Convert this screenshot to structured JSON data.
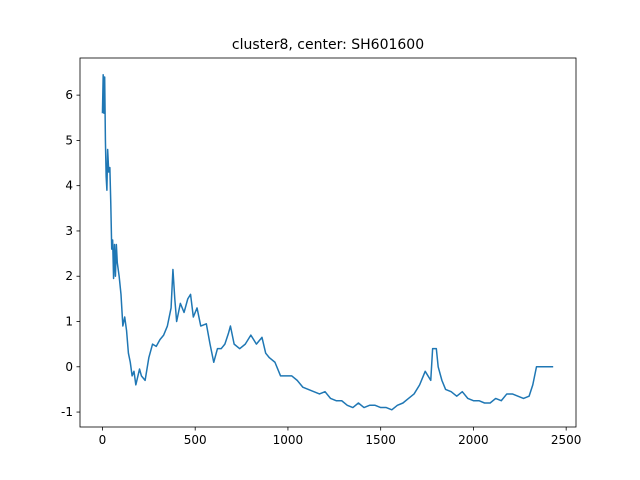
{
  "chart_data": {
    "type": "line",
    "title": "cluster8, center: SH601600",
    "series": [
      {
        "color": "#1f77b4",
        "x": [
          0,
          4,
          8,
          12,
          16,
          20,
          24,
          28,
          34,
          40,
          45,
          50,
          55,
          60,
          65,
          70,
          75,
          80,
          90,
          100,
          110,
          120,
          130,
          140,
          150,
          160,
          170,
          180,
          200,
          210,
          230,
          250,
          270,
          290,
          310,
          330,
          350,
          370,
          380,
          390,
          400,
          420,
          440,
          460,
          475,
          490,
          510,
          530,
          560,
          580,
          600,
          620,
          640,
          660,
          680,
          690,
          710,
          740,
          770,
          800,
          830,
          860,
          880,
          900,
          930,
          960,
          990,
          1020,
          1050,
          1080,
          1110,
          1140,
          1170,
          1200,
          1230,
          1260,
          1290,
          1320,
          1350,
          1380,
          1410,
          1440,
          1470,
          1500,
          1530,
          1560,
          1590,
          1620,
          1650,
          1680,
          1710,
          1740,
          1770,
          1780,
          1800,
          1810,
          1830,
          1850,
          1880,
          1910,
          1940,
          1970,
          2000,
          2030,
          2060,
          2090,
          2120,
          2150,
          2180,
          2210,
          2240,
          2270,
          2300,
          2320,
          2340,
          2360,
          2400,
          2430
        ],
        "values": [
          5.6,
          6.45,
          5.6,
          6.4,
          5.0,
          4.2,
          3.9,
          4.8,
          4.3,
          4.4,
          3.6,
          2.6,
          2.8,
          1.95,
          2.7,
          2.0,
          2.7,
          2.3,
          2.0,
          1.6,
          0.9,
          1.1,
          0.8,
          0.3,
          0.1,
          -0.2,
          -0.1,
          -0.4,
          -0.05,
          -0.2,
          -0.3,
          0.2,
          0.5,
          0.45,
          0.6,
          0.7,
          0.9,
          1.3,
          2.15,
          1.5,
          1.0,
          1.4,
          1.2,
          1.5,
          1.6,
          1.1,
          1.3,
          0.9,
          0.95,
          0.5,
          0.1,
          0.4,
          0.4,
          0.5,
          0.75,
          0.9,
          0.5,
          0.4,
          0.5,
          0.7,
          0.5,
          0.65,
          0.3,
          0.2,
          0.1,
          -0.2,
          -0.2,
          -0.2,
          -0.3,
          -0.45,
          -0.5,
          -0.55,
          -0.6,
          -0.55,
          -0.7,
          -0.75,
          -0.75,
          -0.85,
          -0.9,
          -0.8,
          -0.9,
          -0.85,
          -0.85,
          -0.9,
          -0.9,
          -0.95,
          -0.85,
          -0.8,
          -0.7,
          -0.6,
          -0.4,
          -0.1,
          -0.3,
          0.4,
          0.4,
          0.0,
          -0.3,
          -0.5,
          -0.55,
          -0.65,
          -0.55,
          -0.7,
          -0.75,
          -0.75,
          -0.8,
          -0.8,
          -0.7,
          -0.75,
          -0.6,
          -0.6,
          -0.65,
          -0.7,
          -0.65,
          -0.4,
          0.0,
          0.0,
          0.0,
          0.0
        ]
      }
    ],
    "xlim": [
      -121,
      2553
    ],
    "ylim": [
      -1.33,
      6.82
    ],
    "xticks": [
      0,
      500,
      1000,
      1500,
      2000,
      2500
    ],
    "yticks": [
      -1,
      0,
      1,
      2,
      3,
      4,
      5,
      6
    ]
  }
}
